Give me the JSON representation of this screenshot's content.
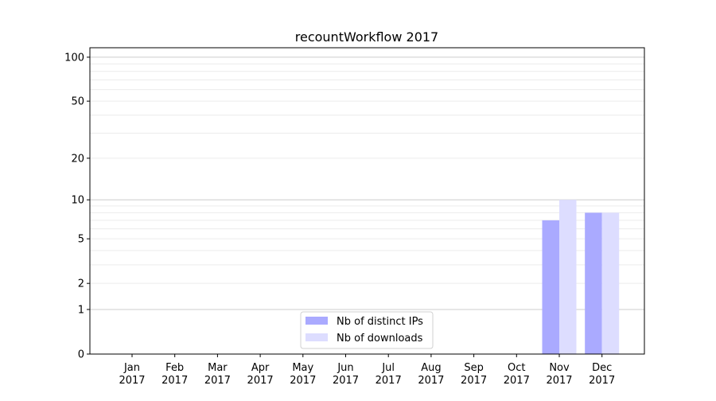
{
  "chart_data": {
    "type": "bar",
    "title": "recountWorkflow 2017",
    "xlabel": "",
    "ylabel": "",
    "yscale": "log(1+y)",
    "ylim": [
      0,
      116
    ],
    "yticks": [
      0,
      1,
      2,
      5,
      10,
      20,
      50,
      100
    ],
    "grid": true,
    "legend_position": "bottom-center",
    "categories": [
      "Jan\n2017",
      "Feb\n2017",
      "Mar\n2017",
      "Apr\n2017",
      "May\n2017",
      "Jun\n2017",
      "Jul\n2017",
      "Aug\n2017",
      "Sep\n2017",
      "Oct\n2017",
      "Nov\n2017",
      "Dec\n2017"
    ],
    "series": [
      {
        "name": "Nb of distinct IPs",
        "color": "#aaaaff",
        "values": [
          0,
          0,
          0,
          0,
          0,
          0,
          0,
          0,
          0,
          0,
          7,
          8
        ]
      },
      {
        "name": "Nb of downloads",
        "color": "#ddddff",
        "values": [
          0,
          0,
          0,
          0,
          0,
          0,
          0,
          0,
          0,
          0,
          10,
          8
        ]
      }
    ]
  }
}
